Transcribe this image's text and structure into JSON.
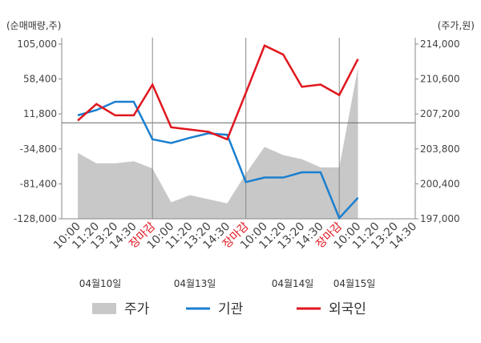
{
  "chart_data": {
    "type": "line",
    "y_label": "(순매매량,주)",
    "y2_label": "(주가,원)",
    "categories": [
      "10:00",
      "11:20",
      "13:20",
      "14:30",
      "장마감",
      "10:00",
      "11:20",
      "13:20",
      "14:30",
      "장마감",
      "10:00",
      "11:20",
      "13:20",
      "14:30",
      "장마감",
      "10:00",
      "11:20",
      "13:20",
      "14:30"
    ],
    "dates": [
      "04월10일",
      "04월13일",
      "04월14일",
      "04월15일"
    ],
    "ylim": [
      -128000,
      105000
    ],
    "yticks": [
      {
        "value": 105000,
        "label": "105,000"
      },
      {
        "value": 58400,
        "label": "58,400"
      },
      {
        "value": 11800,
        "label": "11,800"
      },
      {
        "value": -34800,
        "label": "-34,800"
      },
      {
        "value": -81400,
        "label": "-81,400"
      },
      {
        "value": -128000,
        "label": "-128,000"
      }
    ],
    "y2lim": [
      197000,
      214000
    ],
    "y2ticks": [
      {
        "value": 214000,
        "label": "214,000"
      },
      {
        "value": 210600,
        "label": "210,600"
      },
      {
        "value": 207200,
        "label": "207,200"
      },
      {
        "value": 203800,
        "label": "203,800"
      },
      {
        "value": 200400,
        "label": "200,400"
      },
      {
        "value": 197000,
        "label": "197,000"
      }
    ],
    "grid": false,
    "series": [
      {
        "name": "주가",
        "color": "#c8c8c8",
        "kind": "area",
        "axis": "y2",
        "values": [
          203400,
          202400,
          202400,
          202600,
          201900,
          198600,
          199300,
          198900,
          198500,
          201400,
          204000,
          203200,
          202800,
          202000,
          202000,
          211700,
          null,
          null,
          null
        ]
      },
      {
        "name": "기관",
        "color": "#1a7fd0",
        "kind": "line",
        "values": [
          10000,
          17000,
          28000,
          28000,
          -22000,
          -27000,
          -20000,
          -14000,
          -16000,
          -79000,
          -73000,
          -73000,
          -66000,
          -66000,
          -127000,
          -100000,
          null,
          null,
          null
        ]
      },
      {
        "name": "외국인",
        "color": "#e0161e",
        "kind": "line",
        "values": [
          3000,
          25000,
          10000,
          10000,
          51000,
          -6000,
          -9000,
          -12000,
          -22000,
          40000,
          103000,
          91000,
          48000,
          51000,
          37000,
          85000,
          null,
          null,
          null
        ]
      }
    ]
  }
}
